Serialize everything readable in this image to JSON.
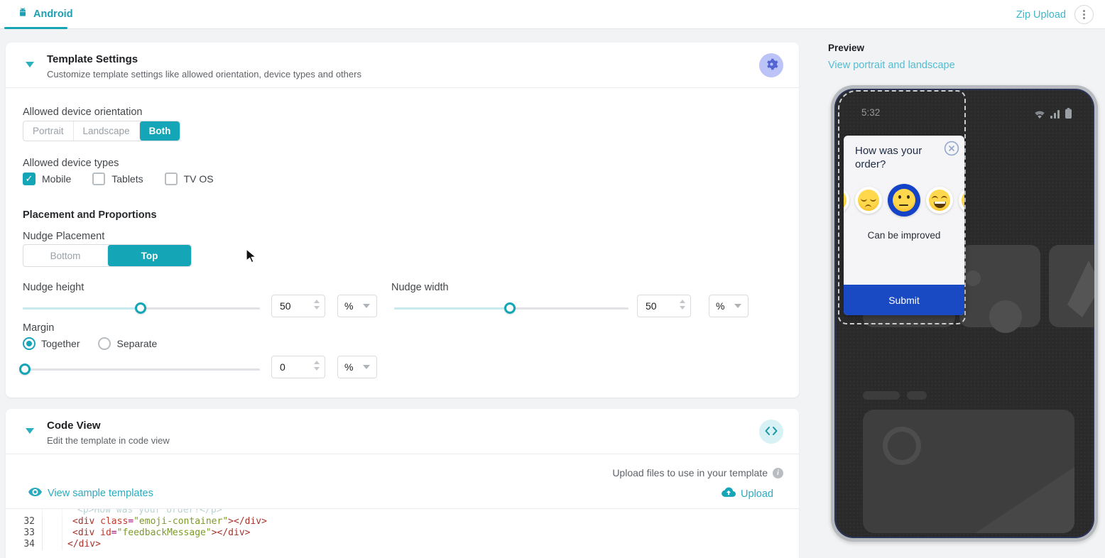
{
  "topbar": {
    "tab": "Android",
    "zip_upload": "Zip Upload"
  },
  "template_settings": {
    "title": "Template Settings",
    "subtitle": "Customize template settings like allowed orientation, device types and others",
    "orientation": {
      "label": "Allowed device orientation",
      "options": [
        "Portrait",
        "Landscape",
        "Both"
      ],
      "selected": "Both"
    },
    "device_types": {
      "label": "Allowed device types",
      "options": [
        {
          "label": "Mobile",
          "checked": true
        },
        {
          "label": "Tablets",
          "checked": false
        },
        {
          "label": "TV OS",
          "checked": false
        }
      ]
    },
    "placement_heading": "Placement and Proportions",
    "nudge_placement": {
      "label": "Nudge Placement",
      "options": [
        "Bottom",
        "Top"
      ],
      "selected": "Top"
    },
    "nudge_height": {
      "label": "Nudge height",
      "value": "50",
      "unit": "%"
    },
    "nudge_width": {
      "label": "Nudge width",
      "value": "50",
      "unit": "%"
    },
    "margin": {
      "label": "Margin",
      "options": [
        "Together",
        "Separate"
      ],
      "selected": "Together",
      "value": "0",
      "unit": "%"
    }
  },
  "code_view": {
    "title": "Code View",
    "subtitle": "Edit the template in code view",
    "upload_files_label": "Upload files to use in your template",
    "view_samples_label": "View sample templates",
    "upload_label": "Upload",
    "lines": [
      {
        "num": "",
        "dim": true,
        "indent": 3,
        "tokens": [
          {
            "text": "<p>How was your order?</p>",
            "type": "dim"
          }
        ]
      },
      {
        "num": "32",
        "indent": 2,
        "tokens": [
          {
            "text": "<div",
            "type": "tag"
          },
          {
            "text": " class",
            "type": "attr"
          },
          {
            "text": "=",
            "type": "punct"
          },
          {
            "text": "\"emoji-container\"",
            "type": "string"
          },
          {
            "text": ">",
            "type": "tag"
          },
          {
            "text": "</div>",
            "type": "tag"
          }
        ]
      },
      {
        "num": "33",
        "indent": 2,
        "tokens": [
          {
            "text": "<div",
            "type": "tag"
          },
          {
            "text": " id",
            "type": "attr"
          },
          {
            "text": "=",
            "type": "punct"
          },
          {
            "text": "\"feedbackMessage\"",
            "type": "string"
          },
          {
            "text": ">",
            "type": "tag"
          },
          {
            "text": "</div>",
            "type": "tag"
          }
        ]
      },
      {
        "num": "34",
        "indent": 1,
        "tokens": [
          {
            "text": "</div>",
            "type": "tag"
          }
        ]
      }
    ]
  },
  "preview": {
    "heading": "Preview",
    "view_link": "View portrait and landscape",
    "phone": {
      "time": "5:32",
      "nudge": {
        "question": "How was your order?",
        "emojis": [
          {
            "kind": "grin",
            "partial": "left"
          },
          {
            "kind": "pensive"
          },
          {
            "kind": "neutral",
            "selected": true
          },
          {
            "kind": "grin"
          },
          {
            "kind": "grin",
            "partial": "right"
          }
        ],
        "feedback": "Can be improved",
        "submit_label": "Submit"
      }
    }
  },
  "colors": {
    "accent_teal": "#14A5B6",
    "link_teal": "#3EB7C9",
    "submit_blue": "#1A49C4",
    "emoji_ring_blue": "#1443C8",
    "gear_purple": "#5265D2",
    "code_tag": "#A5342C",
    "code_string": "#7D9A28"
  }
}
